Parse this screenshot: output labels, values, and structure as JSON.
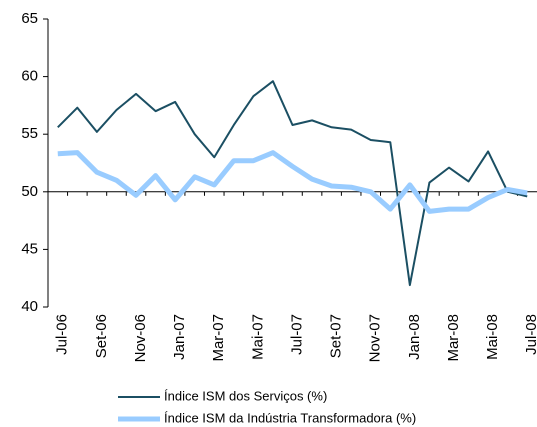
{
  "chart_data": {
    "type": "line",
    "categories": [
      "Jul-06",
      null,
      "Set-06",
      null,
      "Nov-06",
      null,
      "Jan-07",
      null,
      "Mar-07",
      null,
      "Mai-07",
      null,
      "Jul-07",
      null,
      "Set-07",
      null,
      "Nov-07",
      null,
      "Jan-08",
      null,
      "Mar-08",
      null,
      "Mai-08",
      null,
      "Jul-08"
    ],
    "series": [
      {
        "name": "Índice ISM dos Serviços (%)",
        "color": "#1b4f63",
        "width": 2,
        "values": [
          55.6,
          57.3,
          55.2,
          57.1,
          58.5,
          57.0,
          57.8,
          55.0,
          53.0,
          55.8,
          58.3,
          59.6,
          55.8,
          56.2,
          55.6,
          55.4,
          54.5,
          54.3,
          41.9,
          50.8,
          52.1,
          50.9,
          53.5,
          50.0,
          49.6
        ]
      },
      {
        "name": "Índice ISM da Indústria Transformadora (%)",
        "color": "#99ccff",
        "width": 5,
        "values": [
          53.3,
          53.4,
          51.7,
          51.0,
          49.7,
          51.4,
          49.3,
          51.3,
          50.6,
          52.7,
          52.7,
          53.4,
          52.2,
          51.1,
          50.5,
          50.4,
          50.0,
          48.5,
          50.6,
          48.3,
          48.5,
          48.5,
          49.5,
          50.2,
          49.9
        ]
      }
    ],
    "ylim": [
      40,
      65
    ],
    "yticks": [
      40,
      45,
      50,
      55,
      60,
      65
    ],
    "x_axis_crosses": 50,
    "grid": false
  }
}
